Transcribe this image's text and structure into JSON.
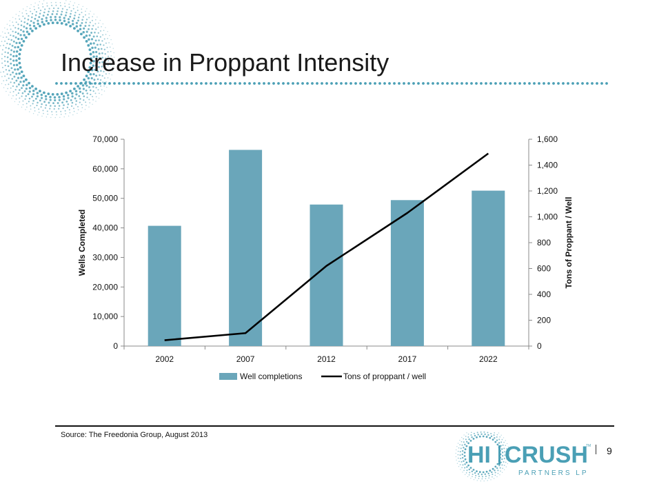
{
  "slide": {
    "title": "Increase in Proppant Intensity",
    "source": "Source: The Freedonia Group, August 2013",
    "page_number": "9"
  },
  "logo": {
    "brand_left": "HI",
    "brand_right": "CRUSH",
    "trademark": "TM",
    "subtitle": "PARTNERS LP",
    "color": "#4a9fb5"
  },
  "colors": {
    "bar": "#6aa6ba",
    "line": "#000000",
    "accent": "#4a9fb5"
  },
  "chart_data": {
    "type": "bar",
    "categories": [
      "2002",
      "2007",
      "2012",
      "2017",
      "2022"
    ],
    "series": [
      {
        "name": "Well completions",
        "type": "bar",
        "axis": "left",
        "values": [
          40700,
          66400,
          47900,
          49400,
          52600
        ]
      },
      {
        "name": "Tons of proppant / well",
        "type": "line",
        "axis": "right",
        "values": [
          45,
          100,
          620,
          1030,
          1490
        ]
      }
    ],
    "ylabel": "Wells Completed",
    "y2label": "Tons of Proppant / Well",
    "ylim": [
      0,
      70000
    ],
    "y2lim": [
      0,
      1600
    ],
    "yticks": [
      "0",
      "10,000",
      "20,000",
      "30,000",
      "40,000",
      "50,000",
      "60,000",
      "70,000"
    ],
    "y2ticks": [
      "0",
      "200",
      "400",
      "600",
      "800",
      "1,000",
      "1,200",
      "1,400",
      "1,600"
    ],
    "legend_position": "bottom",
    "grid": false
  }
}
